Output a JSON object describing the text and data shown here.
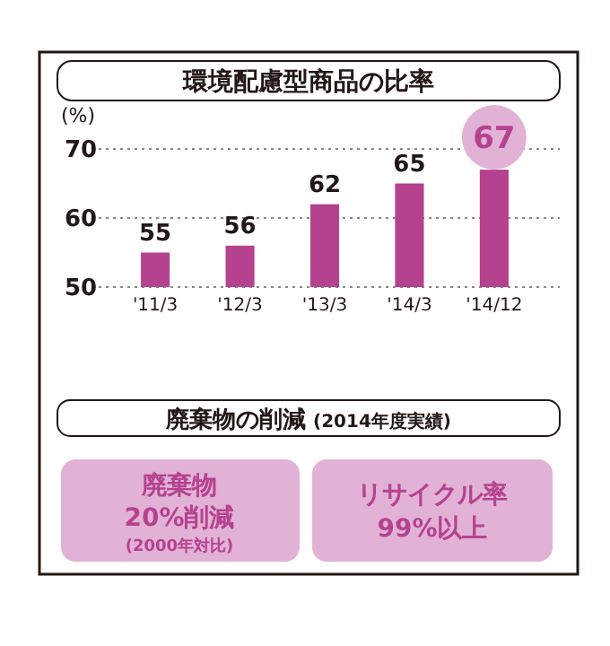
{
  "chart_data": {
    "type": "bar",
    "title": "環境配慮型商品の比率",
    "ylabel": "(%)",
    "categories": [
      "'11/3",
      "'12/3",
      "'13/3",
      "'14/3",
      "'14/12"
    ],
    "values": [
      55,
      56,
      62,
      65,
      67
    ],
    "color": "#b5428f",
    "ylim": [
      50,
      70
    ],
    "yticks": [
      50,
      60,
      70
    ],
    "grid": "y",
    "data_labels": true,
    "annotations": [
      "廃棄物の削減",
      "(2014年度実績)",
      "廃棄物",
      "20%削減",
      "(2000年対比)",
      "リサイクル率",
      "99%以上"
    ]
  }
}
